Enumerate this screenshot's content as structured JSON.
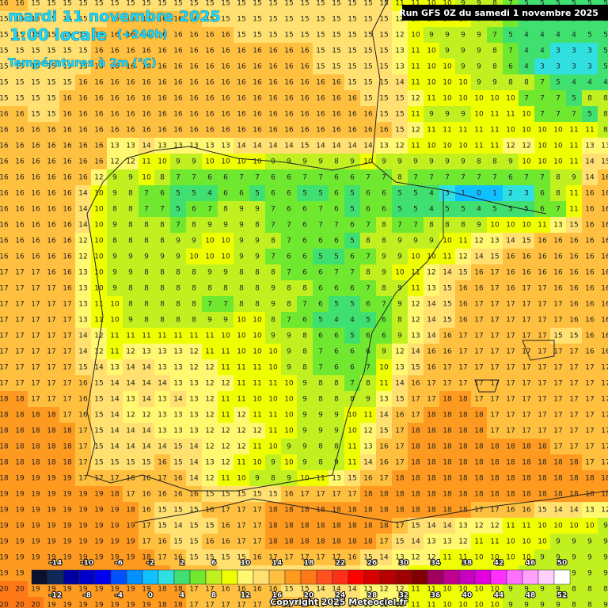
{
  "header": {
    "date": "mardi 11 novembre 2025",
    "local_time": "1:00 locale",
    "lead_time": "(+240h)",
    "variable": "Températures à 2m (°C)",
    "run": "Run GFS 0Z du samedi 1 novembre 2025"
  },
  "footer": {
    "copyright": "Copyright 2025 Meteociel.fr"
  },
  "colorbar": {
    "ticks": [
      -14,
      -12,
      -10,
      -8,
      -6,
      -4,
      -2,
      0,
      2,
      4,
      6,
      8,
      10,
      12,
      14,
      16,
      18,
      20,
      22,
      24,
      26,
      28,
      30,
      32,
      34,
      36,
      38,
      40,
      42,
      44,
      46,
      48,
      50,
      52
    ],
    "colors": [
      "#0a1030",
      "#102858",
      "#0000a0",
      "#0000c8",
      "#0000f0",
      "#0050ff",
      "#0090ff",
      "#10c0ff",
      "#30e0e0",
      "#40e070",
      "#70e830",
      "#c0f020",
      "#f0ff00",
      "#fff870",
      "#ffe070",
      "#ffc040",
      "#ff9a20",
      "#ff7818",
      "#ff5020",
      "#ff3018",
      "#ff0000",
      "#d80000",
      "#b80000",
      "#a00000",
      "#800000",
      "#a00060",
      "#c00090",
      "#c800c0",
      "#e000e0",
      "#ff30ff",
      "#ff70ff",
      "#ffa0ff",
      "#ffd0ff",
      "#ffffff"
    ]
  },
  "grid": [
    [
      16,
      16,
      15,
      15,
      15,
      15,
      15,
      15,
      15,
      15,
      15,
      15,
      15,
      15,
      15,
      15,
      15,
      15,
      15,
      15,
      15,
      15,
      15,
      15,
      15,
      11,
      11,
      10,
      10,
      9,
      9,
      8,
      7,
      5,
      5,
      5,
      5,
      5,
      5
    ],
    [
      15,
      15,
      15,
      15,
      15,
      15,
      15,
      16,
      16,
      16,
      16,
      16,
      16,
      15,
      15,
      15,
      15,
      15,
      15,
      15,
      15,
      15,
      15,
      15,
      15,
      12,
      10,
      10,
      10,
      10,
      9,
      8,
      7,
      5,
      5,
      5,
      5,
      5,
      5
    ],
    [
      15,
      15,
      15,
      15,
      15,
      15,
      16,
      16,
      16,
      16,
      16,
      16,
      16,
      16,
      16,
      15,
      15,
      15,
      15,
      15,
      15,
      15,
      15,
      15,
      15,
      12,
      10,
      9,
      9,
      9,
      9,
      7,
      5,
      4,
      4,
      4,
      4,
      5,
      5
    ],
    [
      15,
      15,
      15,
      15,
      15,
      15,
      16,
      16,
      16,
      16,
      16,
      16,
      16,
      16,
      16,
      16,
      16,
      16,
      16,
      16,
      15,
      15,
      15,
      15,
      15,
      13,
      11,
      10,
      9,
      9,
      9,
      8,
      7,
      4,
      4,
      3,
      3,
      3,
      5
    ],
    [
      15,
      15,
      15,
      15,
      15,
      15,
      16,
      16,
      16,
      16,
      16,
      16,
      16,
      16,
      16,
      16,
      16,
      16,
      16,
      16,
      15,
      15,
      15,
      15,
      15,
      13,
      11,
      10,
      10,
      9,
      9,
      8,
      6,
      4,
      3,
      3,
      3,
      3,
      5
    ],
    [
      15,
      15,
      15,
      15,
      15,
      16,
      16,
      16,
      16,
      16,
      16,
      16,
      16,
      16,
      16,
      16,
      16,
      16,
      16,
      16,
      16,
      16,
      15,
      15,
      15,
      14,
      11,
      10,
      10,
      10,
      9,
      9,
      8,
      8,
      7,
      5,
      4,
      4,
      4
    ],
    [
      15,
      15,
      15,
      15,
      16,
      16,
      16,
      16,
      16,
      16,
      16,
      16,
      16,
      16,
      16,
      16,
      16,
      16,
      16,
      16,
      16,
      16,
      16,
      15,
      15,
      15,
      12,
      11,
      10,
      10,
      10,
      10,
      10,
      7,
      7,
      7,
      5,
      8,
      8
    ],
    [
      16,
      16,
      15,
      15,
      16,
      16,
      16,
      16,
      16,
      16,
      16,
      16,
      16,
      16,
      16,
      16,
      16,
      16,
      16,
      16,
      16,
      16,
      16,
      16,
      15,
      15,
      11,
      9,
      9,
      9,
      10,
      11,
      11,
      10,
      7,
      7,
      7,
      5,
      8
    ],
    [
      16,
      16,
      16,
      16,
      16,
      16,
      16,
      16,
      16,
      16,
      16,
      16,
      16,
      16,
      16,
      16,
      16,
      16,
      16,
      16,
      16,
      16,
      16,
      16,
      16,
      15,
      12,
      11,
      11,
      11,
      11,
      11,
      10,
      10,
      10,
      10,
      11,
      11,
      8
    ],
    [
      16,
      16,
      16,
      16,
      16,
      16,
      16,
      13,
      13,
      14,
      13,
      13,
      13,
      13,
      13,
      14,
      14,
      14,
      14,
      15,
      14,
      14,
      14,
      14,
      13,
      12,
      11,
      10,
      10,
      10,
      11,
      11,
      12,
      12,
      10,
      10,
      11,
      13,
      13
    ],
    [
      16,
      16,
      16,
      16,
      16,
      16,
      16,
      12,
      12,
      11,
      10,
      9,
      9,
      10,
      10,
      10,
      10,
      9,
      9,
      9,
      9,
      8,
      9,
      10,
      9,
      9,
      9,
      9,
      9,
      9,
      8,
      8,
      9,
      10,
      10,
      10,
      11,
      14,
      15
    ],
    [
      16,
      16,
      16,
      16,
      16,
      16,
      12,
      9,
      9,
      10,
      8,
      7,
      7,
      6,
      6,
      7,
      7,
      6,
      6,
      7,
      7,
      6,
      6,
      7,
      7,
      8,
      7,
      7,
      7,
      7,
      7,
      7,
      6,
      7,
      7,
      8,
      9,
      14,
      16
    ],
    [
      16,
      16,
      16,
      16,
      16,
      14,
      10,
      9,
      8,
      7,
      6,
      5,
      5,
      4,
      6,
      6,
      5,
      6,
      6,
      5,
      5,
      6,
      5,
      6,
      6,
      5,
      5,
      4,
      3,
      1,
      0,
      1,
      2,
      3,
      6,
      8,
      11,
      16,
      16
    ],
    [
      16,
      16,
      16,
      16,
      16,
      14,
      10,
      8,
      8,
      7,
      7,
      5,
      6,
      7,
      8,
      9,
      9,
      7,
      6,
      6,
      7,
      6,
      5,
      6,
      6,
      5,
      5,
      4,
      5,
      5,
      4,
      5,
      5,
      5,
      6,
      7,
      11,
      16,
      16
    ],
    [
      16,
      16,
      16,
      16,
      16,
      14,
      10,
      9,
      8,
      8,
      8,
      7,
      8,
      9,
      9,
      9,
      8,
      7,
      7,
      6,
      7,
      7,
      6,
      7,
      8,
      7,
      7,
      8,
      8,
      8,
      9,
      10,
      10,
      10,
      11,
      13,
      15,
      16,
      16
    ],
    [
      16,
      16,
      16,
      16,
      16,
      12,
      10,
      8,
      8,
      8,
      8,
      9,
      9,
      10,
      10,
      9,
      9,
      8,
      7,
      6,
      6,
      6,
      5,
      8,
      8,
      9,
      9,
      9,
      10,
      11,
      12,
      13,
      14,
      15,
      16,
      16,
      16,
      16,
      16
    ],
    [
      16,
      16,
      16,
      16,
      16,
      12,
      10,
      9,
      9,
      9,
      9,
      9,
      10,
      10,
      10,
      9,
      9,
      7,
      6,
      6,
      5,
      5,
      6,
      7,
      9,
      9,
      10,
      10,
      11,
      12,
      14,
      15,
      16,
      16,
      16,
      16,
      16,
      16,
      16
    ],
    [
      17,
      17,
      17,
      16,
      16,
      13,
      10,
      9,
      9,
      8,
      8,
      8,
      8,
      9,
      9,
      8,
      8,
      8,
      7,
      6,
      6,
      7,
      7,
      8,
      9,
      10,
      11,
      12,
      14,
      15,
      16,
      17,
      16,
      16,
      16,
      16,
      16,
      16,
      16
    ],
    [
      17,
      17,
      17,
      17,
      16,
      13,
      10,
      9,
      8,
      8,
      8,
      8,
      8,
      8,
      8,
      8,
      8,
      9,
      8,
      8,
      6,
      6,
      6,
      7,
      8,
      9,
      11,
      13,
      15,
      16,
      16,
      17,
      16,
      17,
      17,
      16,
      16,
      16,
      16
    ],
    [
      17,
      17,
      17,
      17,
      17,
      13,
      11,
      10,
      8,
      8,
      8,
      8,
      8,
      7,
      7,
      8,
      8,
      9,
      8,
      7,
      6,
      5,
      5,
      6,
      7,
      9,
      12,
      14,
      15,
      16,
      17,
      17,
      17,
      17,
      17,
      17,
      16,
      16,
      16
    ],
    [
      17,
      17,
      17,
      17,
      17,
      13,
      11,
      10,
      9,
      8,
      8,
      8,
      8,
      9,
      9,
      10,
      10,
      8,
      7,
      6,
      5,
      4,
      4,
      5,
      6,
      8,
      12,
      14,
      15,
      16,
      17,
      17,
      17,
      17,
      17,
      17,
      16,
      16,
      16
    ],
    [
      17,
      17,
      17,
      17,
      17,
      14,
      12,
      11,
      11,
      11,
      11,
      11,
      11,
      11,
      10,
      10,
      10,
      9,
      9,
      8,
      6,
      6,
      5,
      6,
      6,
      9,
      13,
      14,
      16,
      17,
      17,
      17,
      17,
      17,
      17,
      15,
      15,
      16,
      16
    ],
    [
      17,
      17,
      17,
      17,
      17,
      14,
      12,
      11,
      12,
      13,
      13,
      13,
      12,
      11,
      11,
      10,
      10,
      10,
      9,
      8,
      7,
      6,
      6,
      6,
      9,
      12,
      14,
      16,
      16,
      17,
      17,
      17,
      17,
      17,
      17,
      17,
      17,
      16,
      16
    ],
    [
      17,
      17,
      17,
      17,
      17,
      15,
      14,
      13,
      14,
      14,
      13,
      13,
      12,
      12,
      11,
      11,
      11,
      10,
      9,
      8,
      7,
      6,
      6,
      7,
      10,
      13,
      15,
      16,
      17,
      17,
      17,
      17,
      17,
      17,
      17,
      17,
      17,
      17,
      17
    ],
    [
      17,
      17,
      17,
      17,
      17,
      16,
      15,
      14,
      14,
      14,
      14,
      13,
      13,
      12,
      12,
      11,
      11,
      11,
      10,
      9,
      8,
      8,
      7,
      8,
      11,
      14,
      16,
      17,
      17,
      17,
      17,
      17,
      17,
      17,
      17,
      17,
      17,
      17,
      17
    ],
    [
      18,
      18,
      17,
      17,
      17,
      16,
      15,
      14,
      13,
      14,
      13,
      14,
      13,
      12,
      11,
      11,
      10,
      10,
      10,
      9,
      8,
      8,
      8,
      9,
      13,
      15,
      17,
      17,
      18,
      18,
      17,
      17,
      17,
      17,
      17,
      17,
      17,
      17,
      17
    ],
    [
      18,
      18,
      18,
      18,
      17,
      16,
      15,
      14,
      12,
      12,
      13,
      13,
      13,
      12,
      11,
      12,
      11,
      11,
      10,
      9,
      9,
      9,
      10,
      11,
      14,
      16,
      17,
      18,
      18,
      18,
      18,
      17,
      17,
      17,
      17,
      17,
      17,
      17,
      17
    ],
    [
      18,
      18,
      18,
      18,
      18,
      17,
      15,
      14,
      14,
      14,
      13,
      13,
      13,
      12,
      12,
      12,
      12,
      11,
      10,
      9,
      9,
      9,
      10,
      12,
      15,
      17,
      18,
      18,
      18,
      18,
      18,
      17,
      17,
      17,
      17,
      17,
      17,
      17,
      17
    ],
    [
      18,
      18,
      18,
      18,
      18,
      17,
      15,
      14,
      14,
      14,
      14,
      15,
      14,
      12,
      12,
      12,
      11,
      10,
      9,
      9,
      8,
      8,
      11,
      13,
      16,
      17,
      18,
      18,
      18,
      18,
      18,
      18,
      18,
      18,
      18,
      17,
      17,
      17,
      17
    ],
    [
      18,
      18,
      18,
      18,
      18,
      17,
      15,
      15,
      15,
      15,
      16,
      15,
      14,
      13,
      12,
      11,
      10,
      9,
      10,
      9,
      8,
      9,
      11,
      14,
      16,
      17,
      18,
      18,
      18,
      18,
      18,
      18,
      18,
      18,
      18,
      18,
      18,
      17,
      17
    ],
    [
      18,
      19,
      19,
      19,
      19,
      17,
      17,
      17,
      16,
      16,
      17,
      16,
      14,
      12,
      11,
      10,
      9,
      8,
      9,
      10,
      11,
      13,
      15,
      16,
      17,
      18,
      18,
      18,
      18,
      18,
      18,
      18,
      18,
      18,
      18,
      18,
      18,
      18,
      18
    ],
    [
      19,
      19,
      19,
      19,
      19,
      19,
      19,
      18,
      17,
      16,
      16,
      16,
      16,
      15,
      15,
      15,
      15,
      15,
      16,
      17,
      17,
      17,
      17,
      18,
      18,
      18,
      18,
      18,
      18,
      18,
      18,
      18,
      18,
      18,
      18,
      18,
      18,
      18,
      18
    ],
    [
      19,
      19,
      19,
      19,
      19,
      19,
      19,
      19,
      18,
      16,
      15,
      15,
      15,
      16,
      17,
      17,
      17,
      18,
      18,
      18,
      18,
      18,
      18,
      18,
      18,
      18,
      18,
      18,
      18,
      18,
      17,
      17,
      16,
      16,
      15,
      14,
      14,
      13,
      12
    ],
    [
      19,
      19,
      19,
      19,
      19,
      19,
      19,
      19,
      19,
      17,
      15,
      14,
      15,
      15,
      16,
      17,
      17,
      18,
      18,
      18,
      18,
      18,
      18,
      18,
      18,
      17,
      15,
      14,
      14,
      13,
      12,
      12,
      11,
      11,
      10,
      10,
      10,
      10,
      9
    ],
    [
      19,
      19,
      19,
      19,
      19,
      19,
      19,
      19,
      19,
      17,
      16,
      15,
      15,
      16,
      16,
      17,
      17,
      18,
      18,
      18,
      18,
      18,
      18,
      18,
      17,
      15,
      14,
      13,
      13,
      12,
      11,
      11,
      10,
      10,
      10,
      9,
      9,
      9,
      9
    ],
    [
      19,
      19,
      19,
      19,
      19,
      19,
      19,
      19,
      19,
      18,
      17,
      16,
      15,
      15,
      15,
      15,
      16,
      17,
      17,
      17,
      17,
      17,
      16,
      15,
      14,
      13,
      12,
      12,
      11,
      11,
      10,
      10,
      10,
      10,
      9,
      9,
      9,
      9,
      9
    ],
    [
      19,
      19,
      19,
      19,
      19,
      19,
      19,
      19,
      19,
      18,
      18,
      17,
      16,
      16,
      15,
      15,
      15,
      15,
      15,
      15,
      15,
      15,
      14,
      13,
      12,
      12,
      11,
      11,
      11,
      10,
      10,
      10,
      10,
      9,
      9,
      9,
      9,
      9,
      9
    ],
    [
      20,
      20,
      19,
      19,
      19,
      19,
      19,
      19,
      19,
      19,
      18,
      18,
      17,
      17,
      16,
      16,
      16,
      16,
      15,
      15,
      14,
      14,
      14,
      13,
      12,
      12,
      11,
      11,
      10,
      10,
      10,
      10,
      9,
      9,
      9,
      9,
      8,
      8,
      8
    ],
    [
      20,
      20,
      20,
      19,
      19,
      19,
      19,
      19,
      19,
      19,
      18,
      18,
      17,
      17,
      17,
      17,
      17,
      17,
      16,
      16,
      15,
      15,
      14,
      13,
      12,
      12,
      11,
      11,
      10,
      10,
      10,
      10,
      9,
      9,
      9,
      9,
      8,
      8,
      9
    ]
  ]
}
